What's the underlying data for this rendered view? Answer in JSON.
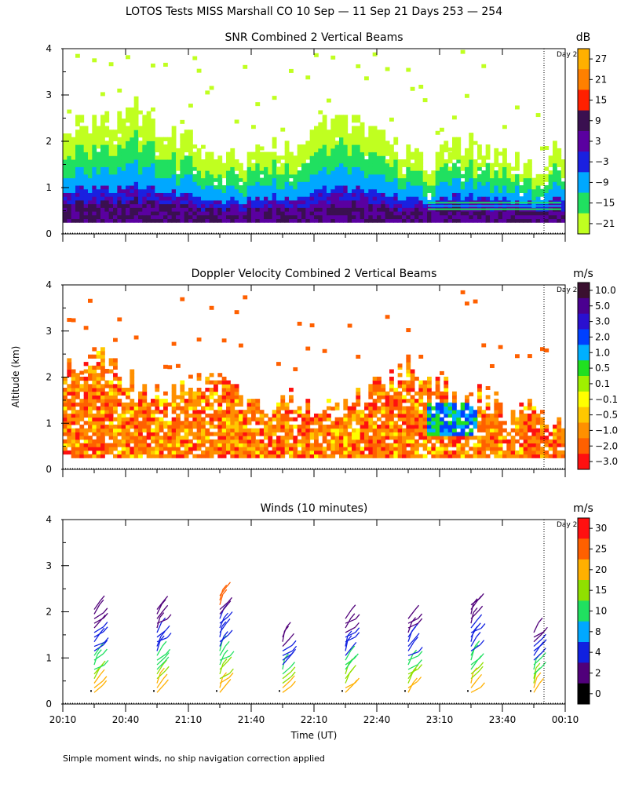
{
  "title": "LOTOS Tests MISS Marshall CO  10 Sep — 11 Sep 21 Days 253 — 254",
  "footnote": "Simple moment winds, no ship navigation correction applied",
  "day_marker_label": "Day 2",
  "chart_data": [
    {
      "type": "heatmap",
      "title": "SNR Combined 2 Vertical Beams",
      "colorbar_unit": "dB",
      "colorbar_ticks": [
        "27",
        "21",
        "15",
        "9",
        "3",
        "−3",
        "−9",
        "−15",
        "−21"
      ],
      "colorbar_colors": [
        "#ffb000",
        "#ff8000",
        "#ff2000",
        "#3a1050",
        "#5a00a0",
        "#1a20e0",
        "#00a8ff",
        "#20e060",
        "#c0ff20"
      ],
      "ylim": [
        0,
        4
      ],
      "yticks": [
        "0",
        "1",
        "2",
        "3",
        "4"
      ],
      "x_ticks": [
        "20:10",
        "20:40",
        "21:10",
        "21:40",
        "22:10",
        "22:40",
        "23:10",
        "23:40",
        "00:10"
      ],
      "profile_tops_km": [
        2.1,
        2.4,
        2.3,
        2.5,
        2.7,
        2.4,
        2.2,
        2.0,
        1.8,
        1.6,
        1.7,
        1.6,
        1.9,
        1.8,
        2.0,
        2.3,
        2.5,
        2.4,
        2.1,
        1.9,
        1.6,
        1.5,
        1.7,
        1.9,
        1.8,
        1.6,
        1.5,
        1.4,
        1.6,
        1.8
      ]
    },
    {
      "type": "heatmap",
      "title": "Doppler Velocity Combined 2 Vertical Beams",
      "colorbar_unit": "m/s",
      "colorbar_ticks": [
        "10.0",
        "5.0",
        "3.0",
        "2.0",
        "1.0",
        "0.5",
        "0.1",
        "−0.1",
        "−0.5",
        "−1.0",
        "−2.0",
        "−3.0"
      ],
      "colorbar_colors": [
        "#3a1030",
        "#4a0090",
        "#2a10d0",
        "#0040ff",
        "#00b0ff",
        "#20e020",
        "#a0f000",
        "#ffff00",
        "#ffc800",
        "#ff9000",
        "#ff6000",
        "#ff1010"
      ],
      "ylim": [
        0,
        4
      ],
      "yticks": [
        "0",
        "1",
        "2",
        "3",
        "4"
      ],
      "ylabel": "Altitude (km)",
      "profile_tops_km": [
        2.0,
        2.2,
        2.4,
        2.1,
        1.8,
        1.6,
        1.5,
        1.7,
        1.9,
        1.8,
        1.6,
        1.4,
        1.3,
        1.5,
        1.4,
        1.2,
        1.3,
        1.5,
        1.7,
        2.0,
        2.2,
        1.9,
        1.7,
        1.6,
        1.5,
        1.4,
        1.3,
        1.2,
        1.1,
        1.0
      ]
    },
    {
      "type": "scatter",
      "title": "Winds (10 minutes)",
      "colorbar_unit": "m/s",
      "colorbar_ticks": [
        "30",
        "25",
        "20",
        "15",
        "10",
        "8",
        "4",
        "2",
        "0"
      ],
      "colorbar_colors": [
        "#ff1010",
        "#ff6000",
        "#ffb000",
        "#90e000",
        "#20e060",
        "#00a8ff",
        "#1020e0",
        "#50007a",
        "#000000"
      ],
      "ylim": [
        0,
        4
      ],
      "yticks": [
        "0",
        "1",
        "2",
        "3",
        "4"
      ],
      "x_ticks": [
        "20:10",
        "20:40",
        "21:10",
        "21:40",
        "22:10",
        "22:40",
        "23:10",
        "23:40",
        "00:10"
      ],
      "xlabel": "Time (UT)",
      "profile_times": [
        "20:25",
        "20:55",
        "21:25",
        "21:55",
        "22:25",
        "22:55",
        "23:25",
        "23:55"
      ],
      "profile_tops_km": [
        2.1,
        2.1,
        2.4,
        1.5,
        1.9,
        1.9,
        2.2,
        1.6
      ]
    }
  ]
}
